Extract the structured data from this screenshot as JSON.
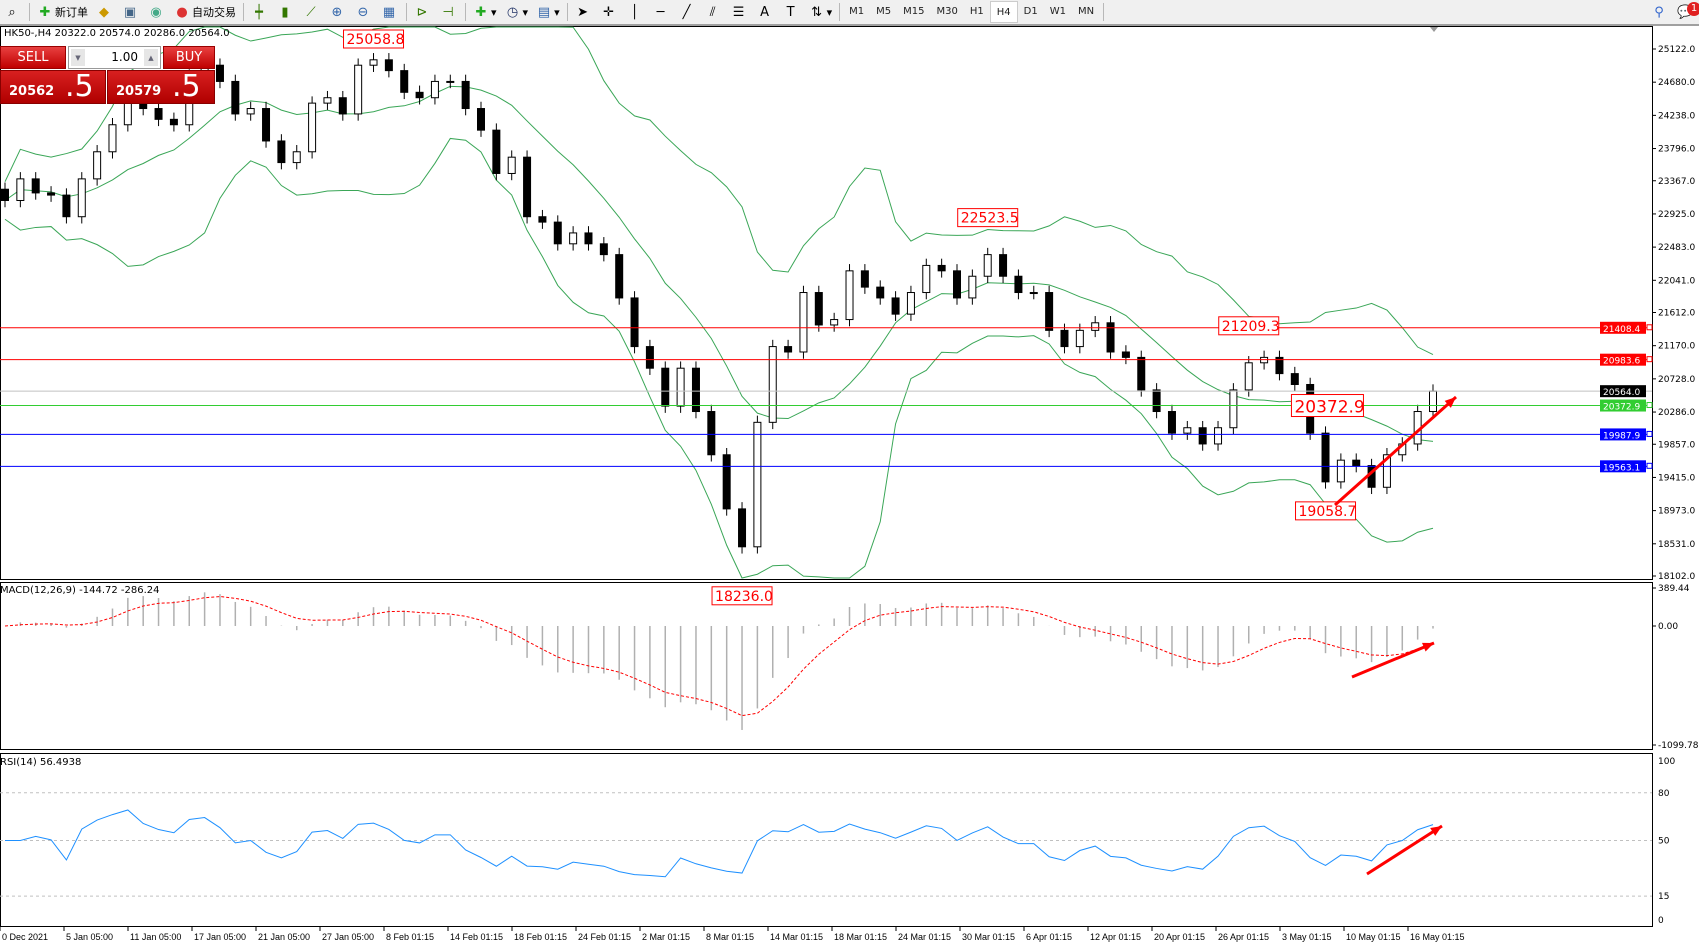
{
  "toolbar": {
    "new_order": "新订单",
    "auto_trading": "自动交易",
    "timeframes": [
      "M1",
      "M5",
      "M15",
      "M30",
      "H1",
      "H4",
      "D1",
      "W1",
      "MN"
    ],
    "active_timeframe": "H4",
    "notification_count": "1"
  },
  "chart": {
    "symbol_info": "HK50-,H4  20322.0 20574.0 20286.0 20564.0",
    "colors": {
      "bull": "#ffffff",
      "bear": "#000000",
      "bands": "#3aa657",
      "red_line": "#ff0000",
      "green_line": "#32cd32",
      "blue_line": "#0000ff",
      "current_line": "#c0c0c0"
    }
  },
  "one_click": {
    "sell_label": "SELL",
    "buy_label": "BUY",
    "lot": "1.00",
    "sell_price_main": "20562",
    "sell_price_big": ".5",
    "buy_price_main": "20579",
    "buy_price_big": ".5"
  },
  "chart_data": {
    "type": "candlestick",
    "price_axis_ticks": [
      "25122.0",
      "24680.0",
      "24238.0",
      "23796.0",
      "23367.0",
      "22925.0",
      "22483.0",
      "22041.0",
      "21612.0",
      "21170.0",
      "20728.0",
      "20286.0",
      "19857.0",
      "19415.0",
      "18973.0",
      "18531.0",
      "18102.0"
    ],
    "ylim": [
      18102,
      25122
    ],
    "closes": [
      23104,
      23392,
      23205,
      23176,
      22888,
      23392,
      23753,
      24113,
      24617,
      24329,
      24185,
      24113,
      24762,
      24906,
      24690,
      24257,
      24329,
      23897,
      23609,
      23753,
      24401,
      24473,
      24257,
      24906,
      24978,
      24834,
      24545,
      24473,
      24690,
      24690,
      24329,
      24041,
      23464,
      23681,
      22888,
      22816,
      22527,
      22672,
      22527,
      22383,
      21806,
      21158,
      20870,
      20365,
      20870,
      20293,
      19717,
      18996,
      18491,
      20149,
      21158,
      21086,
      21878,
      21446,
      21518,
      22167,
      21950,
      21806,
      21590,
      21878,
      22239,
      22167,
      21806,
      22095,
      22383,
      22095,
      21878,
      21878,
      21374,
      21158,
      21374,
      21475,
      21086,
      21014,
      20581,
      20293,
      20005,
      20077,
      19861,
      20077,
      20581,
      20942,
      21014,
      20798,
      20653,
      20005,
      19356,
      19645,
      19573,
      19284,
      19717,
      19861,
      20293,
      20564
    ],
    "horizontal_lines": [
      {
        "value": "21408.4",
        "color": "#ff0000"
      },
      {
        "value": "20983.6",
        "color": "#ff0000"
      },
      {
        "value": "20564.0",
        "color": "#000000",
        "line": "#c0c0c0"
      },
      {
        "value": "20372.9",
        "color": "#32cd32"
      },
      {
        "value": "19987.9",
        "color": "#0000ff"
      },
      {
        "value": "19563.1",
        "color": "#0000ff"
      }
    ],
    "annotations": [
      {
        "text": "25058.8",
        "at_index": 24
      },
      {
        "text": "22523.5",
        "at_index": 64
      },
      {
        "text": "21209.3",
        "at_index": 81
      },
      {
        "text": "20372.9",
        "at_index": 83,
        "large": true
      },
      {
        "text": "19058.7",
        "at_index": 86
      },
      {
        "text": "18236.0",
        "at_index": 48
      }
    ],
    "time_labels": [
      "0 Dec 2021",
      "5 Jan 05:00",
      "11 Jan 05:00",
      "17 Jan 05:00",
      "21 Jan 05:00",
      "27 Jan 05:00",
      "8 Feb 01:15",
      "14 Feb 01:15",
      "18 Feb 01:15",
      "24 Feb 01:15",
      "2 Mar 01:15",
      "8 Mar 01:15",
      "14 Mar 01:15",
      "18 Mar 01:15",
      "24 Mar 01:15",
      "30 Mar 01:15",
      "6 Apr 01:15",
      "12 Apr 01:15",
      "20 Apr 01:15",
      "26 Apr 01:15",
      "3 May 01:15",
      "10 May 01:15",
      "16 May 01:15"
    ],
    "macd": {
      "label": "MACD(12,26,9) -144.72 -286.24",
      "ticks": [
        "389.44",
        "0.00",
        "-1099.78"
      ],
      "ylim": [
        -1099.78,
        389.44
      ]
    },
    "rsi": {
      "label": "RSI(14) 56.4938",
      "ticks": [
        "100",
        "80",
        "50",
        "15",
        "0"
      ],
      "levels": [
        80,
        50,
        15
      ]
    }
  }
}
